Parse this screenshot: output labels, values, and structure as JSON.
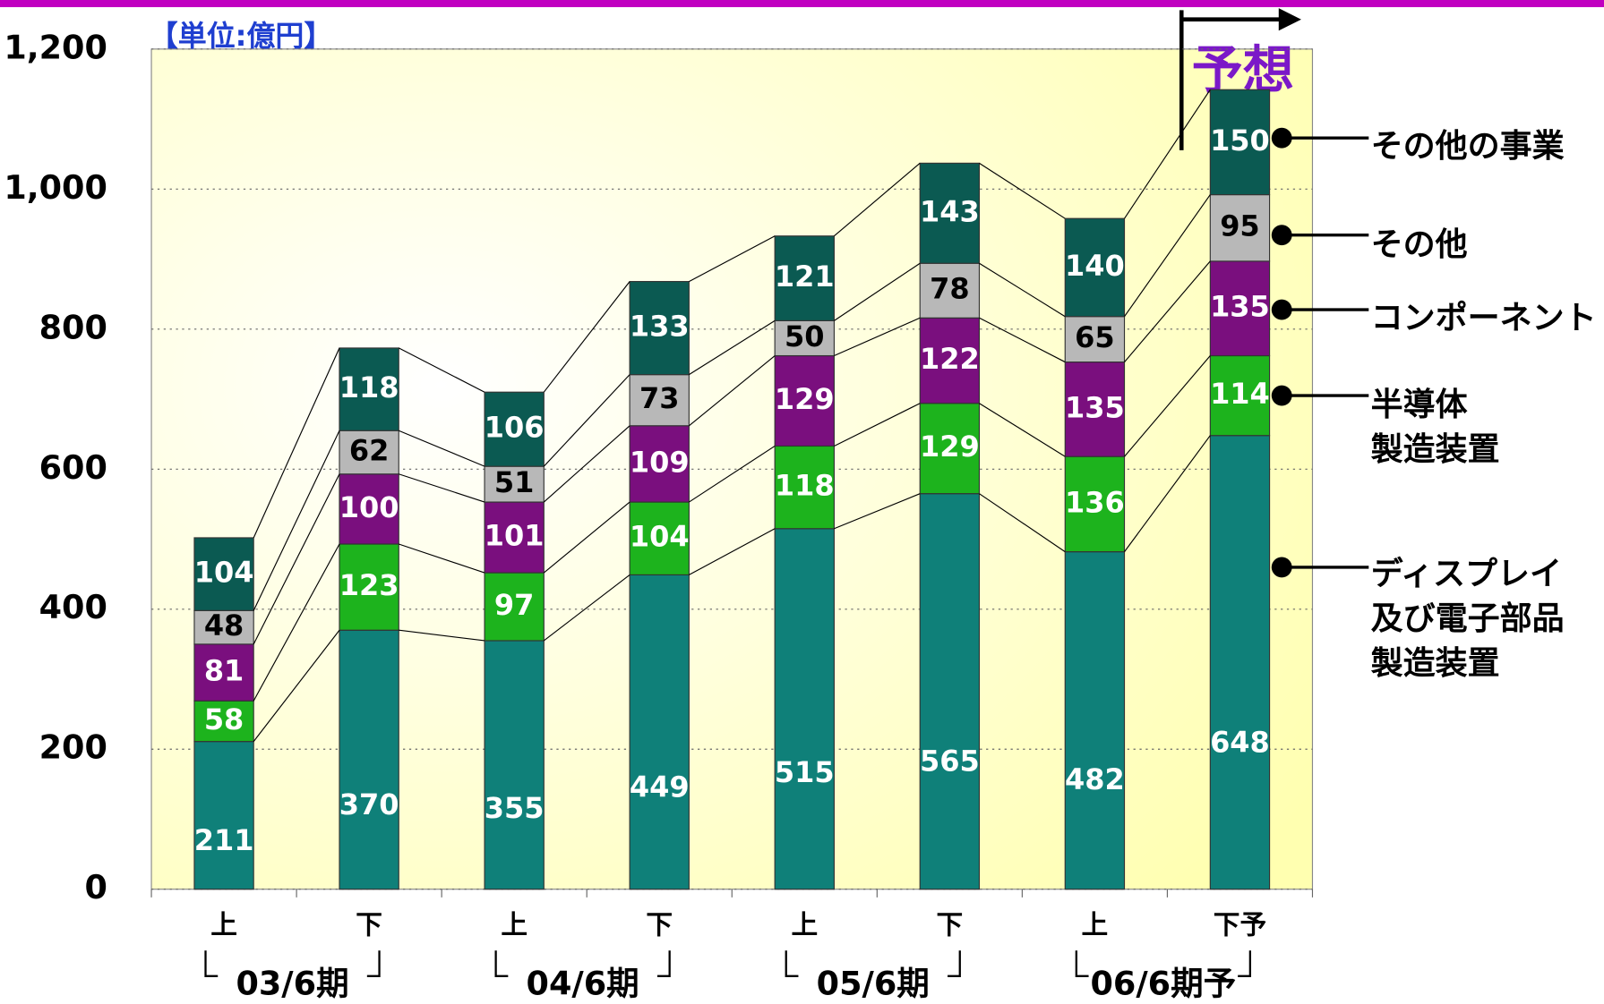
{
  "chart_data": {
    "type": "stacked_bar",
    "unit_label": "【単位:億円】",
    "forecast_label": "予想",
    "categories": [
      "上",
      "下",
      "上",
      "下",
      "上",
      "下",
      "上",
      "下予"
    ],
    "groups": [
      "03/6期",
      "04/6期",
      "05/6期",
      "06/6期予"
    ],
    "ylim": [
      0,
      1200
    ],
    "yticks": [
      0,
      200,
      400,
      600,
      800,
      {
        "value": 1000,
        "label": "1,000"
      },
      {
        "value": 1200,
        "label": "1,200"
      }
    ],
    "grid": true,
    "series": [
      {
        "name": "ディスプレイ\n及び電子部品\n製造装置",
        "color": "#0f8079",
        "values": [
          211,
          370,
          355,
          449,
          515,
          565,
          482,
          648
        ]
      },
      {
        "name": "半導体\n製造装置",
        "color": "#1db31d",
        "values": [
          58,
          123,
          97,
          104,
          118,
          129,
          136,
          114
        ]
      },
      {
        "name": "コンポーネント",
        "color": "#7a0f7e",
        "values": [
          81,
          100,
          101,
          109,
          129,
          122,
          135,
          135
        ]
      },
      {
        "name": "その他",
        "color": "#b8b8b8",
        "values": [
          48,
          62,
          51,
          73,
          50,
          78,
          65,
          95
        ]
      },
      {
        "name": "その他の事業",
        "color": "#0b5a52",
        "values": [
          104,
          118,
          106,
          133,
          121,
          143,
          140,
          150
        ]
      }
    ]
  }
}
